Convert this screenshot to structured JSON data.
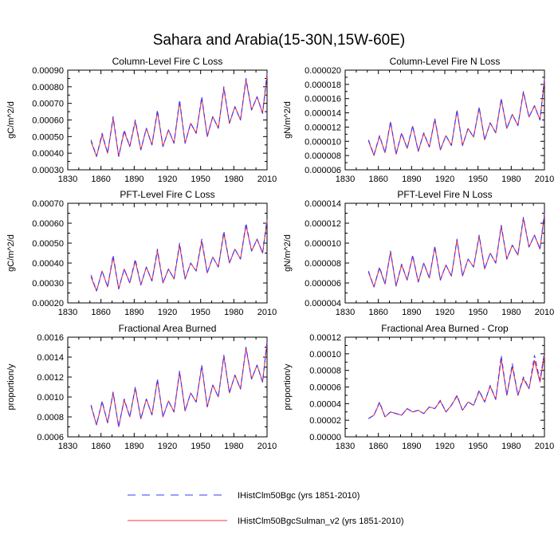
{
  "figure": {
    "title": "Sahara and Arabia(15-30N,15W-60E)"
  },
  "legend": {
    "position": "bottom-center",
    "entries": [
      {
        "label": "IHistClm50Bgc (yrs 1851-2010)",
        "color": "#3a3aff",
        "style": "dashed"
      },
      {
        "label": "IHistClm50BgcSulman_v2 (yrs 1851-2010)",
        "color": "#ff3030",
        "style": "solid"
      }
    ]
  },
  "chart_data": [
    {
      "type": "line",
      "title": "Column-Level Fire C Loss",
      "ylabel": "gC/m^2/d",
      "xlim": [
        1830,
        2010
      ],
      "ylim": [
        0.0003,
        0.0009
      ],
      "xticks": [
        1830,
        1860,
        1890,
        1920,
        1950,
        1980,
        2010
      ],
      "yticks": [
        0.0003,
        0.0004,
        0.0005,
        0.0006,
        0.0007,
        0.0008,
        0.0009
      ],
      "ytick_labels": [
        "0.00030",
        "0.00040",
        "0.00050",
        "0.00060",
        "0.00070",
        "0.00080",
        "0.00090"
      ],
      "x": [
        1851,
        1856,
        1861,
        1866,
        1871,
        1876,
        1881,
        1886,
        1891,
        1896,
        1901,
        1906,
        1911,
        1916,
        1921,
        1926,
        1931,
        1936,
        1941,
        1946,
        1951,
        1956,
        1961,
        1966,
        1971,
        1976,
        1981,
        1986,
        1991,
        1996,
        2001,
        2006,
        2010
      ],
      "series": [
        {
          "name": "IHistClm50Bgc (yrs 1851-2010)",
          "values": [
            0.00048,
            0.00038,
            0.00052,
            0.0004,
            0.00062,
            0.00038,
            0.00054,
            0.00044,
            0.0006,
            0.00042,
            0.00055,
            0.00045,
            0.00066,
            0.00044,
            0.00054,
            0.00046,
            0.00072,
            0.00046,
            0.00058,
            0.00052,
            0.00074,
            0.0005,
            0.00062,
            0.00055,
            0.0008,
            0.00058,
            0.00068,
            0.0006,
            0.00085,
            0.00066,
            0.00074,
            0.00064,
            0.00088
          ]
        },
        {
          "name": "IHistClm50BgcSulman_v2 (yrs 1851-2010)",
          "values": [
            0.00047,
            0.00038,
            0.00051,
            0.0004,
            0.00061,
            0.00038,
            0.00053,
            0.00044,
            0.00059,
            0.00042,
            0.00055,
            0.00045,
            0.00065,
            0.00044,
            0.00054,
            0.00046,
            0.00071,
            0.00046,
            0.00058,
            0.00052,
            0.00073,
            0.0005,
            0.00062,
            0.00055,
            0.00079,
            0.00058,
            0.00068,
            0.0006,
            0.00084,
            0.00066,
            0.00074,
            0.00064,
            0.00087
          ]
        }
      ]
    },
    {
      "type": "line",
      "title": "Column-Level Fire N Loss",
      "ylabel": "gN/m^2/d",
      "xlim": [
        1830,
        2010
      ],
      "ylim": [
        6e-06,
        2e-05
      ],
      "xticks": [
        1830,
        1860,
        1890,
        1920,
        1950,
        1980,
        2010
      ],
      "yticks": [
        6e-06,
        8e-06,
        1e-05,
        1.2e-05,
        1.4e-05,
        1.6e-05,
        1.8e-05,
        2e-05
      ],
      "ytick_labels": [
        "0.000006",
        "0.000008",
        "0.000010",
        "0.000012",
        "0.000014",
        "0.000016",
        "0.000018",
        "0.000020"
      ],
      "x": [
        1851,
        1856,
        1861,
        1866,
        1871,
        1876,
        1881,
        1886,
        1891,
        1896,
        1901,
        1906,
        1911,
        1916,
        1921,
        1926,
        1931,
        1936,
        1941,
        1946,
        1951,
        1956,
        1961,
        1966,
        1971,
        1976,
        1981,
        1986,
        1991,
        1996,
        2001,
        2006,
        2010
      ],
      "series": [
        {
          "name": "IHistClm50Bgc (yrs 1851-2010)",
          "values": [
            1.02e-05,
            8.1e-06,
            1.08e-05,
            8.4e-06,
            1.28e-05,
            8.2e-06,
            1.12e-05,
            9e-06,
            1.22e-05,
            8.6e-06,
            1.12e-05,
            9.2e-06,
            1.32e-05,
            8.8e-06,
            1.08e-05,
            9.4e-06,
            1.44e-05,
            9.4e-06,
            1.18e-05,
            1.06e-05,
            1.48e-05,
            1.02e-05,
            1.26e-05,
            1.12e-05,
            1.6e-05,
            1.18e-05,
            1.38e-05,
            1.22e-05,
            1.7e-05,
            1.34e-05,
            1.5e-05,
            1.3e-05,
            1.88e-05
          ]
        },
        {
          "name": "IHistClm50BgcSulman_v2 (yrs 1851-2010)",
          "values": [
            1.01e-05,
            8e-06,
            1.07e-05,
            8.4e-06,
            1.27e-05,
            8.2e-06,
            1.11e-05,
            9e-06,
            1.21e-05,
            8.6e-06,
            1.11e-05,
            9.2e-06,
            1.31e-05,
            8.8e-06,
            1.08e-05,
            9.4e-06,
            1.43e-05,
            9.4e-06,
            1.18e-05,
            1.06e-05,
            1.47e-05,
            1.02e-05,
            1.26e-05,
            1.12e-05,
            1.59e-05,
            1.18e-05,
            1.38e-05,
            1.22e-05,
            1.69e-05,
            1.34e-05,
            1.5e-05,
            1.3e-05,
            1.86e-05
          ]
        }
      ]
    },
    {
      "type": "line",
      "title": "PFT-Level Fire C Loss",
      "ylabel": "gC/m^2/d",
      "xlim": [
        1830,
        2010
      ],
      "ylim": [
        0.0002,
        0.0007
      ],
      "xticks": [
        1830,
        1860,
        1890,
        1920,
        1950,
        1980,
        2010
      ],
      "yticks": [
        0.0002,
        0.0003,
        0.0004,
        0.0005,
        0.0006,
        0.0007
      ],
      "ytick_labels": [
        "0.00020",
        "0.00030",
        "0.00040",
        "0.00050",
        "0.00060",
        "0.00070"
      ],
      "x": [
        1851,
        1856,
        1861,
        1866,
        1871,
        1876,
        1881,
        1886,
        1891,
        1896,
        1901,
        1906,
        1911,
        1916,
        1921,
        1926,
        1931,
        1936,
        1941,
        1946,
        1951,
        1956,
        1961,
        1966,
        1971,
        1976,
        1981,
        1986,
        1991,
        1996,
        2001,
        2006,
        2010
      ],
      "series": [
        {
          "name": "IHistClm50Bgc (yrs 1851-2010)",
          "values": [
            0.00034,
            0.00026,
            0.00036,
            0.00028,
            0.00044,
            0.00027,
            0.00037,
            0.0003,
            0.00042,
            0.00029,
            0.00038,
            0.00031,
            0.00047,
            0.0003,
            0.00037,
            0.00032,
            0.0005,
            0.00032,
            0.0004,
            0.00036,
            0.00052,
            0.00035,
            0.00043,
            0.00038,
            0.00056,
            0.0004,
            0.00047,
            0.00042,
            0.0006,
            0.00046,
            0.00052,
            0.00045,
            0.00062
          ]
        },
        {
          "name": "IHistClm50BgcSulman_v2 (yrs 1851-2010)",
          "values": [
            0.00033,
            0.00026,
            0.00036,
            0.00028,
            0.00043,
            0.00027,
            0.00037,
            0.0003,
            0.00041,
            0.00029,
            0.00038,
            0.00031,
            0.00046,
            0.0003,
            0.00037,
            0.00032,
            0.00049,
            0.00032,
            0.0004,
            0.00036,
            0.00051,
            0.00035,
            0.00043,
            0.00038,
            0.00055,
            0.0004,
            0.00047,
            0.00042,
            0.00059,
            0.00046,
            0.00052,
            0.00045,
            0.00061
          ]
        }
      ]
    },
    {
      "type": "line",
      "title": "PFT-Level Fire N Loss",
      "ylabel": "gN/m^2/d",
      "xlim": [
        1830,
        2010
      ],
      "ylim": [
        4e-06,
        1.4e-05
      ],
      "xticks": [
        1830,
        1860,
        1890,
        1920,
        1950,
        1980,
        2010
      ],
      "yticks": [
        4e-06,
        6e-06,
        8e-06,
        1e-05,
        1.2e-05,
        1.4e-05
      ],
      "ytick_labels": [
        "0.000004",
        "0.000006",
        "0.000008",
        "0.000010",
        "0.000012",
        "0.000014"
      ],
      "x": [
        1851,
        1856,
        1861,
        1866,
        1871,
        1876,
        1881,
        1886,
        1891,
        1896,
        1901,
        1906,
        1911,
        1916,
        1921,
        1926,
        1931,
        1936,
        1941,
        1946,
        1951,
        1956,
        1961,
        1966,
        1971,
        1976,
        1981,
        1986,
        1991,
        1996,
        2001,
        2006,
        2010
      ],
      "series": [
        {
          "name": "IHistClm50Bgc (yrs 1851-2010)",
          "values": [
            7.2e-06,
            5.6e-06,
            7.6e-06,
            5.9e-06,
            9.2e-06,
            5.7e-06,
            7.9e-06,
            6.3e-06,
            8.8e-06,
            6.1e-06,
            8e-06,
            6.5e-06,
            9.7e-06,
            6.3e-06,
            7.8e-06,
            6.7e-06,
            1.04e-05,
            6.7e-06,
            8.4e-06,
            7.6e-06,
            1.08e-05,
            7.4e-06,
            9e-06,
            8e-06,
            1.18e-05,
            8.4e-06,
            9.8e-06,
            8.8e-06,
            1.26e-05,
            9.6e-06,
            1.08e-05,
            9.4e-06,
            1.3e-05
          ]
        },
        {
          "name": "IHistClm50BgcSulman_v2 (yrs 1851-2010)",
          "values": [
            7.1e-06,
            5.6e-06,
            7.5e-06,
            5.9e-06,
            9.1e-06,
            5.7e-06,
            7.8e-06,
            6.3e-06,
            8.7e-06,
            6.1e-06,
            8e-06,
            6.5e-06,
            9.6e-06,
            6.3e-06,
            7.8e-06,
            6.7e-06,
            1.03e-05,
            6.7e-06,
            8.4e-06,
            7.6e-06,
            1.07e-05,
            7.4e-06,
            9e-06,
            8e-06,
            1.17e-05,
            8.4e-06,
            9.8e-06,
            8.8e-06,
            1.25e-05,
            9.6e-06,
            1.08e-05,
            9.4e-06,
            1.29e-05
          ]
        }
      ]
    },
    {
      "type": "line",
      "title": "Fractional Area Burned",
      "ylabel": "proportion/y",
      "xlim": [
        1830,
        2010
      ],
      "ylim": [
        0.0006,
        0.0016
      ],
      "xticks": [
        1830,
        1860,
        1890,
        1920,
        1950,
        1980,
        2010
      ],
      "yticks": [
        0.0006,
        0.0008,
        0.001,
        0.0012,
        0.0014,
        0.0016
      ],
      "ytick_labels": [
        "0.0006",
        "0.0008",
        "0.0010",
        "0.0012",
        "0.0014",
        "0.0016"
      ],
      "x": [
        1851,
        1856,
        1861,
        1866,
        1871,
        1876,
        1881,
        1886,
        1891,
        1896,
        1901,
        1906,
        1911,
        1916,
        1921,
        1926,
        1931,
        1936,
        1941,
        1946,
        1951,
        1956,
        1961,
        1966,
        1971,
        1976,
        1981,
        1986,
        1991,
        1996,
        2001,
        2006,
        2010
      ],
      "series": [
        {
          "name": "IHistClm50Bgc (yrs 1851-2010)",
          "values": [
            0.00092,
            0.00072,
            0.00096,
            0.00074,
            0.00105,
            0.0007,
            0.00098,
            0.0008,
            0.0011,
            0.00078,
            0.00098,
            0.00082,
            0.00118,
            0.0008,
            0.00096,
            0.00085,
            0.00126,
            0.00086,
            0.00104,
            0.00095,
            0.00132,
            0.0009,
            0.00112,
            0.001,
            0.00142,
            0.00104,
            0.00122,
            0.00108,
            0.0015,
            0.00118,
            0.00132,
            0.00115,
            0.00156
          ]
        },
        {
          "name": "IHistClm50BgcSulman_v2 (yrs 1851-2010)",
          "values": [
            0.00091,
            0.00072,
            0.00095,
            0.00074,
            0.00104,
            0.0007,
            0.00097,
            0.0008,
            0.00109,
            0.00078,
            0.00098,
            0.00082,
            0.00117,
            0.0008,
            0.00096,
            0.00085,
            0.00125,
            0.00086,
            0.00104,
            0.00095,
            0.00131,
            0.0009,
            0.00112,
            0.001,
            0.00141,
            0.00104,
            0.00122,
            0.00108,
            0.00149,
            0.00118,
            0.00132,
            0.00115,
            0.00155
          ]
        }
      ]
    },
    {
      "type": "line",
      "title": "Fractional Area Burned - Crop",
      "ylabel": "proportion/y",
      "xlim": [
        1830,
        2010
      ],
      "ylim": [
        0,
        0.00012
      ],
      "xticks": [
        1830,
        1860,
        1890,
        1920,
        1950,
        1980,
        2010
      ],
      "yticks": [
        0,
        2e-05,
        4e-05,
        6e-05,
        8e-05,
        0.0001,
        0.00012
      ],
      "ytick_labels": [
        "0.00000",
        "0.00002",
        "0.00004",
        "0.00006",
        "0.00008",
        "0.00010",
        "0.00012"
      ],
      "x": [
        1851,
        1856,
        1861,
        1866,
        1871,
        1876,
        1881,
        1886,
        1891,
        1896,
        1901,
        1906,
        1911,
        1916,
        1921,
        1926,
        1931,
        1936,
        1941,
        1946,
        1951,
        1956,
        1961,
        1966,
        1971,
        1976,
        1981,
        1986,
        1991,
        1996,
        2001,
        2006,
        2010
      ],
      "series": [
        {
          "name": "IHistClm50Bgc (yrs 1851-2010)",
          "values": [
            2.2e-05,
            2.6e-05,
            4.2e-05,
            2.4e-05,
            3e-05,
            2.8e-05,
            2.6e-05,
            3.4e-05,
            3e-05,
            3.2e-05,
            2.8e-05,
            3.6e-05,
            3.4e-05,
            4.4e-05,
            3e-05,
            3.8e-05,
            5e-05,
            3.2e-05,
            4.2e-05,
            3.8e-05,
            5.6e-05,
            4.2e-05,
            6.2e-05,
            4.5e-05,
            9.8e-05,
            5e-05,
            8.8e-05,
            5e-05,
            7.2e-05,
            5.8e-05,
            9.8e-05,
            6.8e-05,
            0.000102
          ]
        },
        {
          "name": "IHistClm50BgcSulman_v2 (yrs 1851-2010)",
          "values": [
            2.2e-05,
            2.6e-05,
            4.1e-05,
            2.4e-05,
            3e-05,
            2.8e-05,
            2.6e-05,
            3.4e-05,
            3e-05,
            3.2e-05,
            2.8e-05,
            3.6e-05,
            3.4e-05,
            4.3e-05,
            3e-05,
            3.8e-05,
            4.9e-05,
            3.2e-05,
            4.2e-05,
            3.8e-05,
            5.5e-05,
            4.2e-05,
            6.1e-05,
            4.5e-05,
            9.4e-05,
            5e-05,
            8.5e-05,
            5e-05,
            7e-05,
            5.8e-05,
            9.2e-05,
            6.6e-05,
            9.8e-05
          ]
        }
      ]
    }
  ]
}
